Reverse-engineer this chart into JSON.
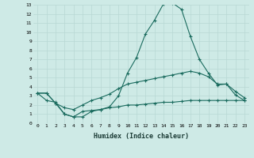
{
  "xlabel": "Humidex (Indice chaleur)",
  "bg_color": "#ceeae6",
  "line_color": "#1a6b5e",
  "grid_color": "#b8d8d4",
  "xlim": [
    -0.5,
    23.5
  ],
  "ylim": [
    0,
    13
  ],
  "xticks": [
    0,
    1,
    2,
    3,
    4,
    5,
    6,
    7,
    8,
    9,
    10,
    11,
    12,
    13,
    14,
    15,
    16,
    17,
    18,
    19,
    20,
    21,
    22,
    23
  ],
  "yticks": [
    0,
    1,
    2,
    3,
    4,
    5,
    6,
    7,
    8,
    9,
    10,
    11,
    12,
    13
  ],
  "series": [
    [
      3.3,
      3.3,
      2.2,
      1.0,
      0.7,
      0.7,
      1.3,
      1.5,
      1.8,
      3.0,
      5.5,
      7.2,
      9.8,
      11.3,
      13.1,
      13.2,
      12.5,
      9.5,
      7.0,
      5.5,
      4.2,
      4.3,
      3.1,
      2.5
    ],
    [
      3.3,
      3.3,
      2.2,
      1.7,
      1.5,
      2.0,
      2.5,
      2.8,
      3.2,
      3.8,
      4.3,
      4.5,
      4.7,
      4.9,
      5.1,
      5.3,
      5.5,
      5.7,
      5.5,
      5.1,
      4.3,
      4.3,
      3.5,
      2.8
    ],
    [
      3.3,
      2.5,
      2.3,
      1.0,
      0.7,
      1.3,
      1.4,
      1.5,
      1.7,
      1.8,
      2.0,
      2.0,
      2.1,
      2.2,
      2.3,
      2.3,
      2.4,
      2.5,
      2.5,
      2.5,
      2.5,
      2.5,
      2.5,
      2.5
    ]
  ]
}
